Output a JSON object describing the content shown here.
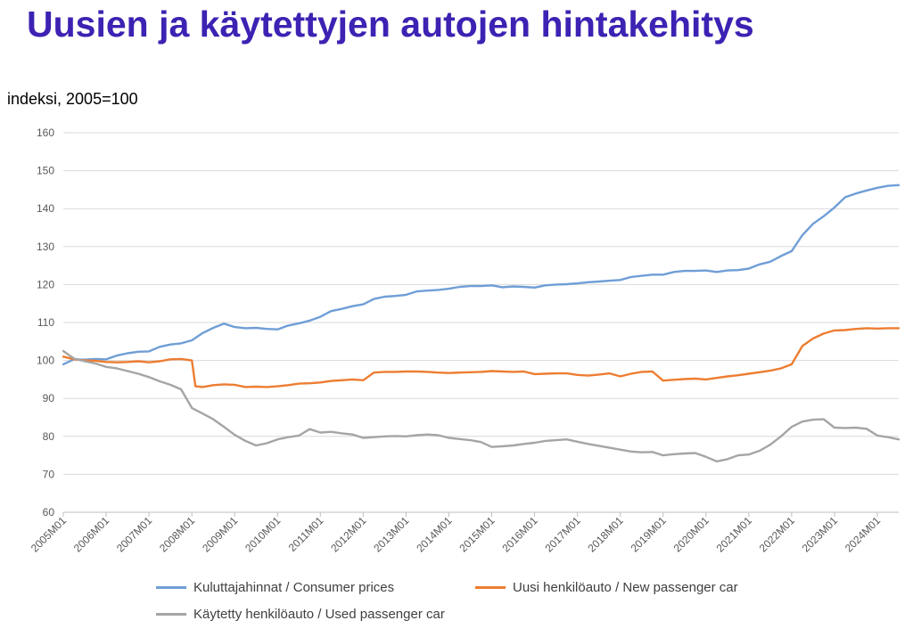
{
  "title": "Uusien ja käytettyjen autojen hintakehitys",
  "subtitle": "indeksi, 2005=100",
  "chart_data": {
    "type": "line",
    "ylim": [
      60,
      160
    ],
    "y_ticks": [
      60,
      70,
      80,
      90,
      100,
      110,
      120,
      130,
      140,
      150,
      160
    ],
    "x_tick_labels": [
      "2005M01",
      "2006M01",
      "2007M01",
      "2008M01",
      "2009M01",
      "2010M01",
      "2011M01",
      "2012M01",
      "2013M01",
      "2014M01",
      "2015M01",
      "2016M01",
      "2017M01",
      "2018M01",
      "2019M01",
      "2020M01",
      "2021M01",
      "2022M01",
      "2023M01",
      "2024M01"
    ],
    "x_start": "2005M01",
    "x_end": "2024M07",
    "grid": "horizontal",
    "legend_position": "bottom",
    "series": [
      {
        "name": "Kuluttajahinnat / Consumer prices",
        "color": "#6f9ed6",
        "points": [
          [
            "2005M01",
            99.0
          ],
          [
            "2005M04",
            100.3
          ],
          [
            "2005M07",
            100.2
          ],
          [
            "2005M10",
            100.4
          ],
          [
            "2006M01",
            100.3
          ],
          [
            "2006M04",
            101.3
          ],
          [
            "2006M07",
            101.9
          ],
          [
            "2006M10",
            102.3
          ],
          [
            "2007M01",
            102.4
          ],
          [
            "2007M04",
            103.6
          ],
          [
            "2007M07",
            104.2
          ],
          [
            "2007M10",
            104.5
          ],
          [
            "2008M01",
            105.3
          ],
          [
            "2008M04",
            107.2
          ],
          [
            "2008M07",
            108.6
          ],
          [
            "2008M10",
            109.7
          ],
          [
            "2009M01",
            108.8
          ],
          [
            "2009M04",
            108.5
          ],
          [
            "2009M07",
            108.6
          ],
          [
            "2009M10",
            108.3
          ],
          [
            "2010M01",
            108.2
          ],
          [
            "2010M04",
            109.2
          ],
          [
            "2010M07",
            109.8
          ],
          [
            "2010M10",
            110.5
          ],
          [
            "2011M01",
            111.5
          ],
          [
            "2011M04",
            113.0
          ],
          [
            "2011M07",
            113.6
          ],
          [
            "2011M10",
            114.3
          ],
          [
            "2012M01",
            114.8
          ],
          [
            "2012M04",
            116.2
          ],
          [
            "2012M07",
            116.8
          ],
          [
            "2012M10",
            117.0
          ],
          [
            "2013M01",
            117.3
          ],
          [
            "2013M04",
            118.2
          ],
          [
            "2013M07",
            118.4
          ],
          [
            "2013M10",
            118.6
          ],
          [
            "2014M01",
            118.9
          ],
          [
            "2014M04",
            119.4
          ],
          [
            "2014M07",
            119.6
          ],
          [
            "2014M10",
            119.6
          ],
          [
            "2015M01",
            119.8
          ],
          [
            "2015M04",
            119.3
          ],
          [
            "2015M07",
            119.5
          ],
          [
            "2015M10",
            119.4
          ],
          [
            "2016M01",
            119.2
          ],
          [
            "2016M04",
            119.8
          ],
          [
            "2016M07",
            120.0
          ],
          [
            "2016M10",
            120.1
          ],
          [
            "2017M01",
            120.3
          ],
          [
            "2017M04",
            120.6
          ],
          [
            "2017M07",
            120.8
          ],
          [
            "2017M10",
            121.0
          ],
          [
            "2018M01",
            121.2
          ],
          [
            "2018M04",
            122.0
          ],
          [
            "2018M07",
            122.3
          ],
          [
            "2018M10",
            122.6
          ],
          [
            "2019M01",
            122.6
          ],
          [
            "2019M04",
            123.3
          ],
          [
            "2019M07",
            123.6
          ],
          [
            "2019M10",
            123.6
          ],
          [
            "2020M01",
            123.7
          ],
          [
            "2020M04",
            123.3
          ],
          [
            "2020M07",
            123.7
          ],
          [
            "2020M10",
            123.8
          ],
          [
            "2021M01",
            124.2
          ],
          [
            "2021M04",
            125.3
          ],
          [
            "2021M07",
            126.0
          ],
          [
            "2021M10",
            127.5
          ],
          [
            "2022M01",
            128.8
          ],
          [
            "2022M04",
            133.0
          ],
          [
            "2022M07",
            136.0
          ],
          [
            "2022M10",
            138.0
          ],
          [
            "2023M01",
            140.3
          ],
          [
            "2023M04",
            143.0
          ],
          [
            "2023M07",
            144.0
          ],
          [
            "2023M10",
            144.8
          ],
          [
            "2024M01",
            145.5
          ],
          [
            "2024M04",
            146.0
          ],
          [
            "2024M07",
            146.2
          ]
        ]
      },
      {
        "name": "Uusi henkilöauto / New passenger car",
        "color": "#ed7d31",
        "points": [
          [
            "2005M01",
            101.0
          ],
          [
            "2005M04",
            100.3
          ],
          [
            "2005M07",
            100.0
          ],
          [
            "2005M10",
            99.9
          ],
          [
            "2006M01",
            99.6
          ],
          [
            "2006M04",
            99.5
          ],
          [
            "2006M07",
            99.6
          ],
          [
            "2006M10",
            99.8
          ],
          [
            "2007M01",
            99.5
          ],
          [
            "2007M04",
            99.8
          ],
          [
            "2007M07",
            100.3
          ],
          [
            "2007M10",
            100.4
          ],
          [
            "2008M01",
            100.0
          ],
          [
            "2008M02",
            93.2
          ],
          [
            "2008M04",
            93.0
          ],
          [
            "2008M07",
            93.5
          ],
          [
            "2008M10",
            93.7
          ],
          [
            "2009M01",
            93.6
          ],
          [
            "2009M04",
            93.0
          ],
          [
            "2009M07",
            93.1
          ],
          [
            "2009M10",
            93.0
          ],
          [
            "2010M01",
            93.2
          ],
          [
            "2010M04",
            93.5
          ],
          [
            "2010M07",
            93.9
          ],
          [
            "2010M10",
            94.0
          ],
          [
            "2011M01",
            94.2
          ],
          [
            "2011M04",
            94.6
          ],
          [
            "2011M07",
            94.8
          ],
          [
            "2011M10",
            95.0
          ],
          [
            "2012M01",
            94.8
          ],
          [
            "2012M04",
            96.8
          ],
          [
            "2012M07",
            97.0
          ],
          [
            "2012M10",
            97.0
          ],
          [
            "2013M01",
            97.1
          ],
          [
            "2013M04",
            97.1
          ],
          [
            "2013M07",
            97.0
          ],
          [
            "2013M10",
            96.8
          ],
          [
            "2014M01",
            96.7
          ],
          [
            "2014M04",
            96.8
          ],
          [
            "2014M07",
            96.9
          ],
          [
            "2014M10",
            97.0
          ],
          [
            "2015M01",
            97.2
          ],
          [
            "2015M04",
            97.1
          ],
          [
            "2015M07",
            97.0
          ],
          [
            "2015M10",
            97.1
          ],
          [
            "2016M01",
            96.4
          ],
          [
            "2016M04",
            96.5
          ],
          [
            "2016M07",
            96.6
          ],
          [
            "2016M10",
            96.6
          ],
          [
            "2017M01",
            96.2
          ],
          [
            "2017M04",
            96.0
          ],
          [
            "2017M07",
            96.3
          ],
          [
            "2017M10",
            96.6
          ],
          [
            "2018M01",
            95.8
          ],
          [
            "2018M04",
            96.5
          ],
          [
            "2018M07",
            97.0
          ],
          [
            "2018M10",
            97.1
          ],
          [
            "2019M01",
            94.7
          ],
          [
            "2019M04",
            94.9
          ],
          [
            "2019M07",
            95.1
          ],
          [
            "2019M10",
            95.2
          ],
          [
            "2020M01",
            95.0
          ],
          [
            "2020M04",
            95.4
          ],
          [
            "2020M07",
            95.8
          ],
          [
            "2020M10",
            96.1
          ],
          [
            "2021M01",
            96.5
          ],
          [
            "2021M04",
            96.9
          ],
          [
            "2021M07",
            97.3
          ],
          [
            "2021M10",
            97.9
          ],
          [
            "2022M01",
            99.0
          ],
          [
            "2022M04",
            103.8
          ],
          [
            "2022M07",
            105.8
          ],
          [
            "2022M10",
            107.1
          ],
          [
            "2023M01",
            107.9
          ],
          [
            "2023M04",
            108.0
          ],
          [
            "2023M07",
            108.3
          ],
          [
            "2023M10",
            108.5
          ],
          [
            "2024M01",
            108.4
          ],
          [
            "2024M04",
            108.5
          ],
          [
            "2024M07",
            108.5
          ]
        ]
      },
      {
        "name": "Käytetty henkilöauto / Used passenger car",
        "color": "#a5a5a5",
        "points": [
          [
            "2005M01",
            102.5
          ],
          [
            "2005M04",
            100.5
          ],
          [
            "2005M07",
            99.8
          ],
          [
            "2005M10",
            99.2
          ],
          [
            "2006M01",
            98.3
          ],
          [
            "2006M04",
            97.9
          ],
          [
            "2006M07",
            97.2
          ],
          [
            "2006M10",
            96.5
          ],
          [
            "2007M01",
            95.6
          ],
          [
            "2007M04",
            94.5
          ],
          [
            "2007M07",
            93.6
          ],
          [
            "2007M10",
            92.4
          ],
          [
            "2008M01",
            87.5
          ],
          [
            "2008M04",
            86.0
          ],
          [
            "2008M07",
            84.5
          ],
          [
            "2008M10",
            82.5
          ],
          [
            "2009M01",
            80.4
          ],
          [
            "2009M04",
            78.8
          ],
          [
            "2009M07",
            77.6
          ],
          [
            "2009M10",
            78.2
          ],
          [
            "2010M01",
            79.2
          ],
          [
            "2010M04",
            79.8
          ],
          [
            "2010M07",
            80.2
          ],
          [
            "2010M10",
            81.9
          ],
          [
            "2011M01",
            81.0
          ],
          [
            "2011M04",
            81.2
          ],
          [
            "2011M07",
            80.8
          ],
          [
            "2011M10",
            80.5
          ],
          [
            "2012M01",
            79.6
          ],
          [
            "2012M04",
            79.8
          ],
          [
            "2012M07",
            80.0
          ],
          [
            "2012M10",
            80.1
          ],
          [
            "2013M01",
            80.0
          ],
          [
            "2013M04",
            80.3
          ],
          [
            "2013M07",
            80.5
          ],
          [
            "2013M10",
            80.3
          ],
          [
            "2014M01",
            79.6
          ],
          [
            "2014M04",
            79.3
          ],
          [
            "2014M07",
            79.0
          ],
          [
            "2014M10",
            78.5
          ],
          [
            "2015M01",
            77.2
          ],
          [
            "2015M04",
            77.4
          ],
          [
            "2015M07",
            77.6
          ],
          [
            "2015M10",
            78.0
          ],
          [
            "2016M01",
            78.3
          ],
          [
            "2016M04",
            78.8
          ],
          [
            "2016M07",
            79.0
          ],
          [
            "2016M10",
            79.2
          ],
          [
            "2017M01",
            78.6
          ],
          [
            "2017M04",
            78.0
          ],
          [
            "2017M07",
            77.5
          ],
          [
            "2017M10",
            77.0
          ],
          [
            "2018M01",
            76.5
          ],
          [
            "2018M04",
            76.0
          ],
          [
            "2018M07",
            75.8
          ],
          [
            "2018M10",
            75.9
          ],
          [
            "2019M01",
            75.0
          ],
          [
            "2019M04",
            75.3
          ],
          [
            "2019M07",
            75.5
          ],
          [
            "2019M10",
            75.6
          ],
          [
            "2020M01",
            74.6
          ],
          [
            "2020M04",
            73.4
          ],
          [
            "2020M07",
            74.0
          ],
          [
            "2020M10",
            75.0
          ],
          [
            "2021M01",
            75.2
          ],
          [
            "2021M04",
            76.2
          ],
          [
            "2021M07",
            77.8
          ],
          [
            "2021M10",
            80.0
          ],
          [
            "2022M01",
            82.5
          ],
          [
            "2022M04",
            83.9
          ],
          [
            "2022M07",
            84.4
          ],
          [
            "2022M10",
            84.5
          ],
          [
            "2023M01",
            82.3
          ],
          [
            "2023M04",
            82.2
          ],
          [
            "2023M07",
            82.3
          ],
          [
            "2023M10",
            82.0
          ],
          [
            "2024M01",
            80.2
          ],
          [
            "2024M04",
            79.8
          ],
          [
            "2024M07",
            79.2
          ]
        ]
      }
    ]
  }
}
